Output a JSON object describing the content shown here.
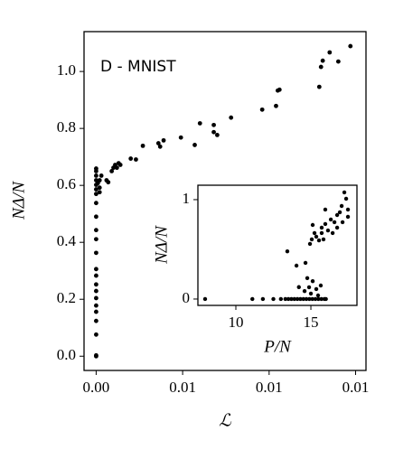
{
  "chart_data": [
    {
      "type": "scatter",
      "annotation": "D - MNIST",
      "xlabel": "ℒ",
      "ylabel": "NΔ/N",
      "color": "#000000",
      "xlim": [
        -0.0007,
        0.0156
      ],
      "ylim": [
        -0.05,
        1.14
      ],
      "xticks": [
        {
          "value": 0,
          "label": "0.00"
        },
        {
          "value": 0.005,
          "label": "0.01"
        },
        {
          "value": 0.01,
          "label": "0.01"
        },
        {
          "value": 0.015,
          "label": "0.01"
        }
      ],
      "yticks": [
        {
          "value": 0,
          "label": "0.0"
        },
        {
          "value": 0.2,
          "label": "0.2"
        },
        {
          "value": 0.4,
          "label": "0.4"
        },
        {
          "value": 0.6,
          "label": "0.6"
        },
        {
          "value": 0.8,
          "label": "0.8"
        },
        {
          "value": 1.0,
          "label": "1.0"
        }
      ],
      "x": [
        0,
        0,
        0,
        0,
        0,
        0,
        0,
        0,
        0,
        0,
        0,
        0,
        0,
        0,
        0,
        0,
        0,
        0,
        0,
        0,
        0,
        0,
        0,
        0.0001,
        0.0002,
        0.0003,
        0.0002,
        0.0002,
        0.0007,
        0.0006,
        0.0009,
        0.001,
        0.0011,
        0.0013,
        0.0012,
        0.0014,
        0.002,
        0.0023,
        0.0027,
        0.0036,
        0.0037,
        0.0039,
        0.0049,
        0.0057,
        0.006,
        0.0068,
        0.0068,
        0.007,
        0.0078,
        0.0096,
        0.0104,
        0.0105,
        0.0106,
        0.0129,
        0.013,
        0.0131,
        0.0135,
        0.014,
        0.0147
      ],
      "values": [
        0.0,
        0.003,
        0.076,
        0.124,
        0.156,
        0.178,
        0.204,
        0.229,
        0.252,
        0.283,
        0.306,
        0.363,
        0.411,
        0.443,
        0.49,
        0.538,
        0.57,
        0.586,
        0.602,
        0.618,
        0.634,
        0.65,
        0.659,
        0.608,
        0.618,
        0.634,
        0.592,
        0.576,
        0.611,
        0.618,
        0.65,
        0.662,
        0.672,
        0.678,
        0.662,
        0.672,
        0.694,
        0.691,
        0.739,
        0.748,
        0.736,
        0.758,
        0.768,
        0.742,
        0.818,
        0.787,
        0.812,
        0.777,
        0.838,
        0.866,
        0.879,
        0.933,
        0.936,
        0.946,
        1.016,
        1.038,
        1.067,
        1.035,
        1.089
      ]
    },
    {
      "type": "scatter",
      "xlabel": "P/N",
      "ylabel": "NΔ/N",
      "color": "#000000",
      "xlim": [
        7.47,
        18.07
      ],
      "ylim": [
        -0.064,
        1.145
      ],
      "xticks": [
        10,
        15
      ],
      "yticks": [
        0,
        1
      ],
      "x": [
        7.95,
        11.1,
        11.8,
        12.5,
        13.0,
        13.3,
        13.5,
        13.7,
        13.9,
        14.1,
        14.3,
        14.5,
        14.7,
        14.9,
        15.1,
        15.3,
        15.5,
        15.7,
        15.9,
        16.0,
        14.88,
        15.12,
        15.0,
        15.36,
        14.58,
        15.48,
        15.66,
        14.04,
        13.43,
        14.2,
        14.76,
        15.06,
        15.24,
        15.36,
        15.54,
        15.72,
        15.84,
        15.12,
        15.96,
        16.14,
        16.33,
        16.57,
        16.45,
        16.75,
        16.93,
        17.05,
        17.23,
        17.35,
        17.47,
        17.11,
        16.75,
        15.72,
        15.96,
        17.47,
        14.94,
        14.64
      ],
      "values": [
        0,
        0,
        0,
        0,
        0,
        0,
        0,
        0,
        0,
        0,
        0,
        0,
        0,
        0,
        0,
        0,
        0,
        0,
        0,
        0,
        0.118,
        0.18,
        0.055,
        0.1,
        0.08,
        0.036,
        0.136,
        0.336,
        0.48,
        0.12,
        0.21,
        0.6,
        0.664,
        0.627,
        0.59,
        0.664,
        0.6,
        0.745,
        0.755,
        0.69,
        0.8,
        0.773,
        0.664,
        0.845,
        0.873,
        0.936,
        1.073,
        1.009,
        0.9,
        0.773,
        0.718,
        0.718,
        0.9,
        0.827,
        0.555,
        0.364
      ]
    }
  ]
}
